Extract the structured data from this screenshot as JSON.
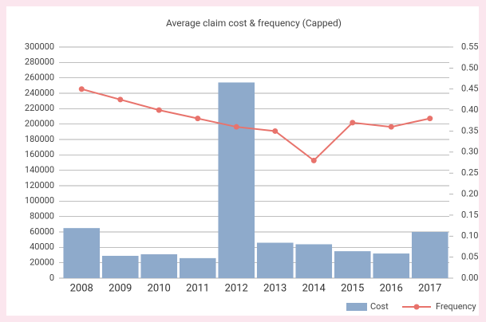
{
  "chart_data": {
    "type": "bar",
    "title": "Average claim cost & frequency (Capped)",
    "categories": [
      "2008",
      "2009",
      "2010",
      "2011",
      "2012",
      "2013",
      "2014",
      "2015",
      "2016",
      "2017"
    ],
    "series": [
      {
        "name": "Cost",
        "color": "#8eaacb",
        "values": [
          65000,
          29000,
          31000,
          26000,
          254000,
          46000,
          44000,
          35000,
          32000,
          60000
        ]
      },
      {
        "name": "Frequency",
        "color": "#e8736c",
        "axis": "y2",
        "values": [
          0.45,
          0.425,
          0.4,
          0.38,
          0.36,
          0.35,
          0.28,
          0.37,
          0.36,
          0.38
        ]
      }
    ],
    "ylim": [
      0,
      300000
    ],
    "yticks": [
      0,
      20000,
      40000,
      60000,
      80000,
      100000,
      120000,
      140000,
      160000,
      180000,
      200000,
      220000,
      240000,
      260000,
      280000,
      300000
    ],
    "y2lim": [
      0,
      0.55
    ],
    "y2ticks": [
      {
        "value": 0,
        "label": "0.00"
      },
      0.05,
      {
        "value": 0.1,
        "label": "0.10"
      },
      0.15,
      {
        "value": 0.2,
        "label": "0.20"
      },
      0.25,
      {
        "value": 0.3,
        "label": "0.30"
      },
      0.35,
      {
        "value": 0.4,
        "label": "0.40"
      },
      0.45,
      {
        "value": 0.5,
        "label": "0.50"
      },
      0.55
    ],
    "grid": true,
    "legend": "bottom-right"
  }
}
